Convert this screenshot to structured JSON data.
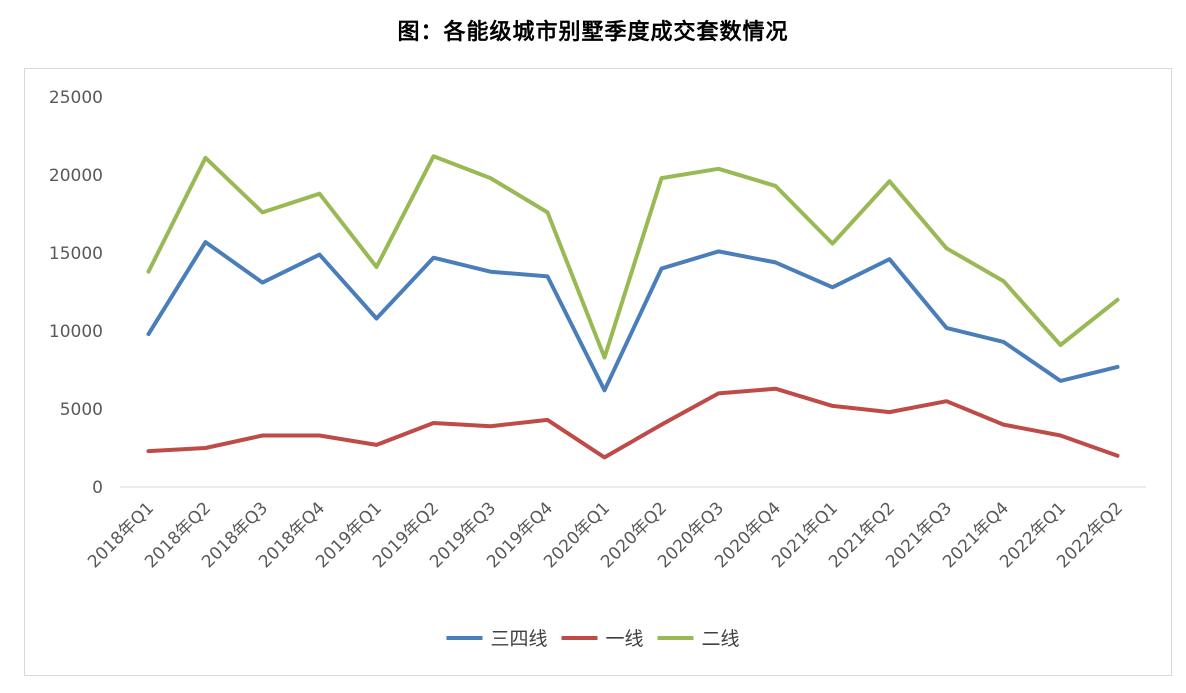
{
  "title": "图：各能级城市别墅季度成交套数情况",
  "chart_data": {
    "type": "line",
    "title": "图：各能级城市别墅季度成交套数情况",
    "xlabel": "",
    "ylabel": "",
    "ylim": [
      0,
      25000
    ],
    "yticks": [
      "0",
      "5000",
      "10000",
      "15000",
      "20000",
      "25000"
    ],
    "grid": false,
    "legend_position": "bottom",
    "categories": [
      "2018年Q1",
      "2018年Q2",
      "2018年Q3",
      "2018年Q4",
      "2019年Q1",
      "2019年Q2",
      "2019年Q3",
      "2019年Q4",
      "2020年Q1",
      "2020年Q2",
      "2020年Q3",
      "2020年Q4",
      "2021年Q1",
      "2021年Q2",
      "2021年Q3",
      "2021年Q4",
      "2022年Q1",
      "2022年Q2"
    ],
    "series": [
      {
        "name": "三四线",
        "color": "#4a7ebb",
        "values": [
          9800,
          15700,
          13100,
          14900,
          10800,
          14700,
          13800,
          13500,
          6200,
          14000,
          15100,
          14400,
          12800,
          14600,
          10200,
          9300,
          6800,
          7700
        ]
      },
      {
        "name": "一线",
        "color": "#be4b48",
        "values": [
          2300,
          2500,
          3300,
          3300,
          2700,
          4100,
          3900,
          4300,
          1900,
          4000,
          6000,
          6300,
          5200,
          4800,
          5500,
          4000,
          3300,
          2000
        ]
      },
      {
        "name": "二线",
        "color": "#98b954",
        "values": [
          13800,
          21100,
          17600,
          18800,
          14100,
          21200,
          19800,
          17600,
          8300,
          19800,
          20400,
          19300,
          15600,
          19600,
          15300,
          13200,
          9100,
          12000
        ]
      }
    ]
  }
}
